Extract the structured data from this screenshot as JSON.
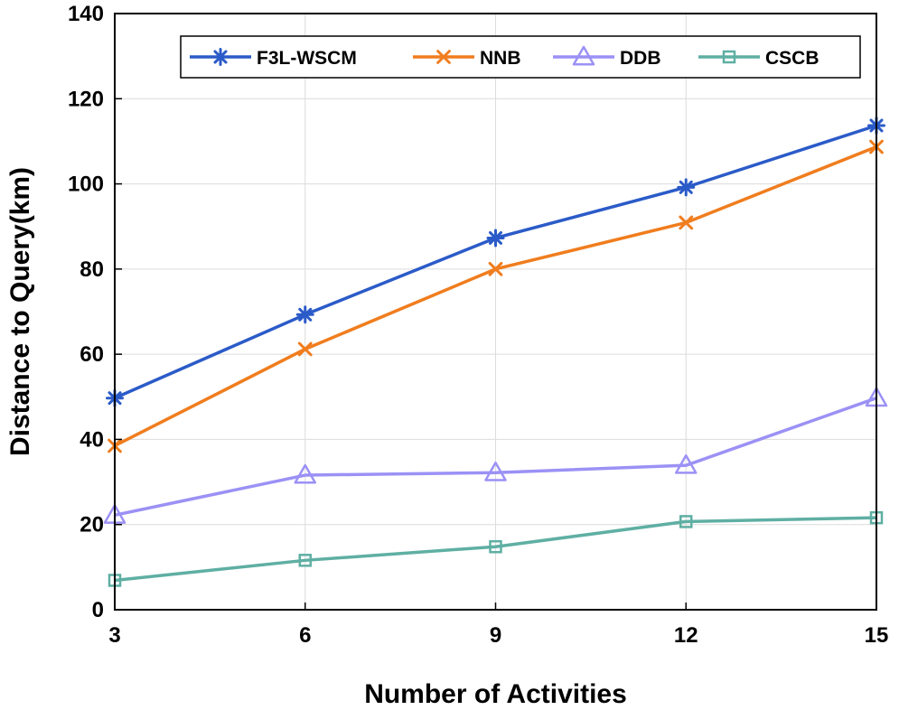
{
  "chart_data": {
    "type": "line",
    "title": "",
    "xlabel": "Number of Activities",
    "ylabel": "Distance to Query(km)",
    "x": [
      3,
      6,
      9,
      12,
      15
    ],
    "xlim": [
      3,
      15
    ],
    "ylim": [
      0,
      140
    ],
    "xticks": [
      "3",
      "6",
      "9",
      "12",
      "15"
    ],
    "yticks": [
      "0",
      "20",
      "40",
      "60",
      "80",
      "100",
      "120",
      "140"
    ],
    "grid": true,
    "legend_position": "top-right",
    "series": [
      {
        "name": "F3L-WSCM",
        "marker": "asterisk",
        "color": "#2b5bc8",
        "values": [
          49.7,
          69.3,
          87.3,
          99.2,
          113.7
        ]
      },
      {
        "name": "NNB",
        "marker": "x",
        "color": "#f07d1e",
        "values": [
          38.5,
          61.2,
          80.0,
          90.9,
          108.7
        ]
      },
      {
        "name": "DDB",
        "marker": "triangle",
        "color": "#9b91f5",
        "values": [
          22.2,
          31.6,
          32.2,
          33.9,
          49.7
        ]
      },
      {
        "name": "CSCB",
        "marker": "square",
        "color": "#5fafa3",
        "values": [
          6.9,
          11.6,
          14.8,
          20.7,
          21.6
        ]
      }
    ]
  }
}
